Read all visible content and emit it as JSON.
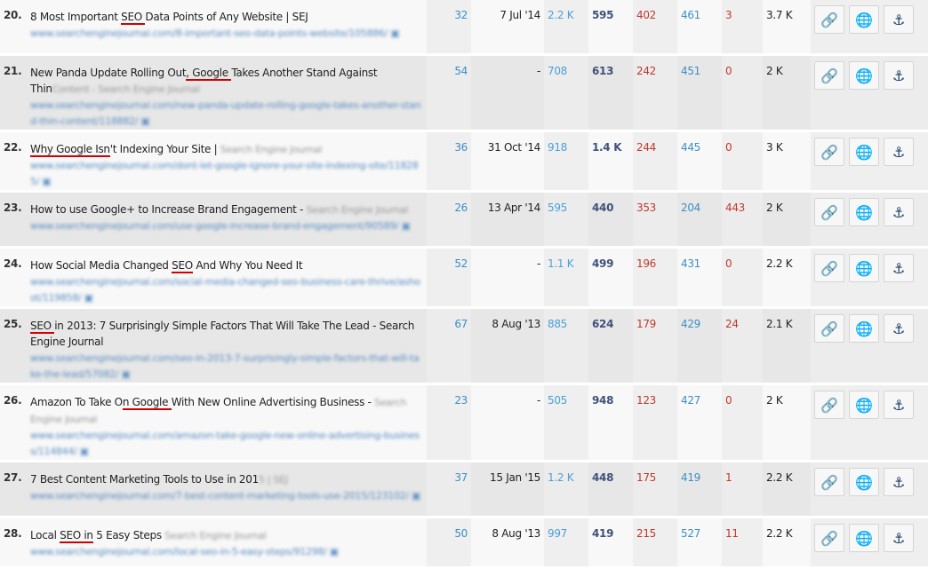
{
  "colors": {
    "keyword_underline": "#d00000",
    "link": "#5a8ec4"
  },
  "buttons": [
    {
      "icon": "link-icon",
      "glyph": "🔗"
    },
    {
      "icon": "globe-icon",
      "glyph": "🌐"
    },
    {
      "icon": "anchor-icon",
      "glyph": "⚓"
    }
  ],
  "rows": [
    {
      "n": "20.",
      "pre": "8 Most Important ",
      "kw": "SEO ",
      "post": "Data Points of Any Website | SEJ",
      "site": "",
      "url": "www.searchenginejournal.com/8-important-seo-data-points-website/105886/",
      "c1": "32",
      "date": "7 Jul '14",
      "c3": "2.2 K",
      "c4": "595",
      "c5": "402",
      "c6": "461",
      "c7": "3",
      "c8": "3.7 K"
    },
    {
      "n": "21.",
      "pre": "New Panda Update Rolling Out",
      "kw": ", Google ",
      "post": "Takes Another Stand Against Thin",
      "site": "Content - Search Engine Journal",
      "url": "www.searchenginejournal.com/new-panda-update-rolling-google-takes-another-stand-thin-content/118882/",
      "c1": "54",
      "date": "-",
      "c3": "708",
      "c4": "613",
      "c5": "242",
      "c6": "451",
      "c7": "0",
      "c8": "2 K"
    },
    {
      "n": "22.",
      "pre": "",
      "kw": "Why Google Isn",
      "post": "'t Indexing Your Site | ",
      "site": "Search Engine Journal",
      "url": "www.searchenginejournal.com/dont-let-google-ignore-your-site-indexing-site/118285/",
      "c1": "36",
      "date": "31 Oct '14",
      "c3": "918",
      "c4": "1.4 K",
      "c5": "244",
      "c6": "445",
      "c7": "0",
      "c8": "3 K"
    },
    {
      "n": "23.",
      "pre": "How to use Google+ to Increase Brand Engagement - ",
      "kw": "",
      "post": "",
      "site": "Search Engine Journal",
      "url": "www.searchenginejournal.com/use-google-increase-brand-engagement/90589/",
      "c1": "26",
      "date": "13 Apr '14",
      "c3": "595",
      "c4": "440",
      "c5": "353",
      "c6": "204",
      "c7": "443",
      "c8": "2 K"
    },
    {
      "n": "24.",
      "pre": "How Social Media Changed ",
      "kw": "SEO",
      "post": " And Why You Need It",
      "site": "",
      "url": "www.searchenginejournal.com/social-media-changed-seo-business-care-thrive/ashoot/119858/",
      "c1": "52",
      "date": "-",
      "c3": "1.1 K",
      "c4": "499",
      "c5": "196",
      "c6": "431",
      "c7": "0",
      "c8": "2.2 K"
    },
    {
      "n": "25.",
      "pre": "",
      "kw": "SEO ",
      "post": "in 2013: 7 Surprisingly Simple Factors That Will Take The Lead - Search Engine Journal",
      "site": "",
      "url": "www.searchenginejournal.com/seo-in-2013-7-surprisingly-simple-factors-that-will-take-the-lead/57082/",
      "c1": "67",
      "date": "8 Aug '13",
      "c3": "885",
      "c4": "624",
      "c5": "179",
      "c6": "429",
      "c7": "24",
      "c8": "2.1 K"
    },
    {
      "n": "26.",
      "pre": "Amazon To Take O",
      "kw": "n Google ",
      "post": "With New Online Advertising Business - ",
      "site": "Search Engine Journal",
      "url": "www.searchenginejournal.com/amazon-take-google-new-online-advertising-business/114844/",
      "c1": "23",
      "date": "-",
      "c3": "505",
      "c4": "948",
      "c5": "123",
      "c6": "427",
      "c7": "0",
      "c8": "2 K"
    },
    {
      "n": "27.",
      "pre": "7 Best Content Marketing Tools to Use in 201",
      "kw": "",
      "post": "",
      "site": "5 | SEJ",
      "url": "www.searchenginejournal.com/7-best-content-marketing-tools-use-2015/123102/",
      "c1": "37",
      "date": "15 Jan '15",
      "c3": "1.2 K",
      "c4": "448",
      "c5": "175",
      "c6": "419",
      "c7": "1",
      "c8": "2.2 K"
    },
    {
      "n": "28.",
      "pre": "Local ",
      "kw": "SEO in",
      "post": " 5 Easy Steps ",
      "site": "Search Engine Journal",
      "url": "www.searchenginejournal.com/local-seo-in-5-easy-steps/91298/",
      "c1": "50",
      "date": "8 Aug '13",
      "c3": "997",
      "c4": "419",
      "c5": "215",
      "c6": "527",
      "c7": "11",
      "c8": "2.2 K"
    }
  ]
}
